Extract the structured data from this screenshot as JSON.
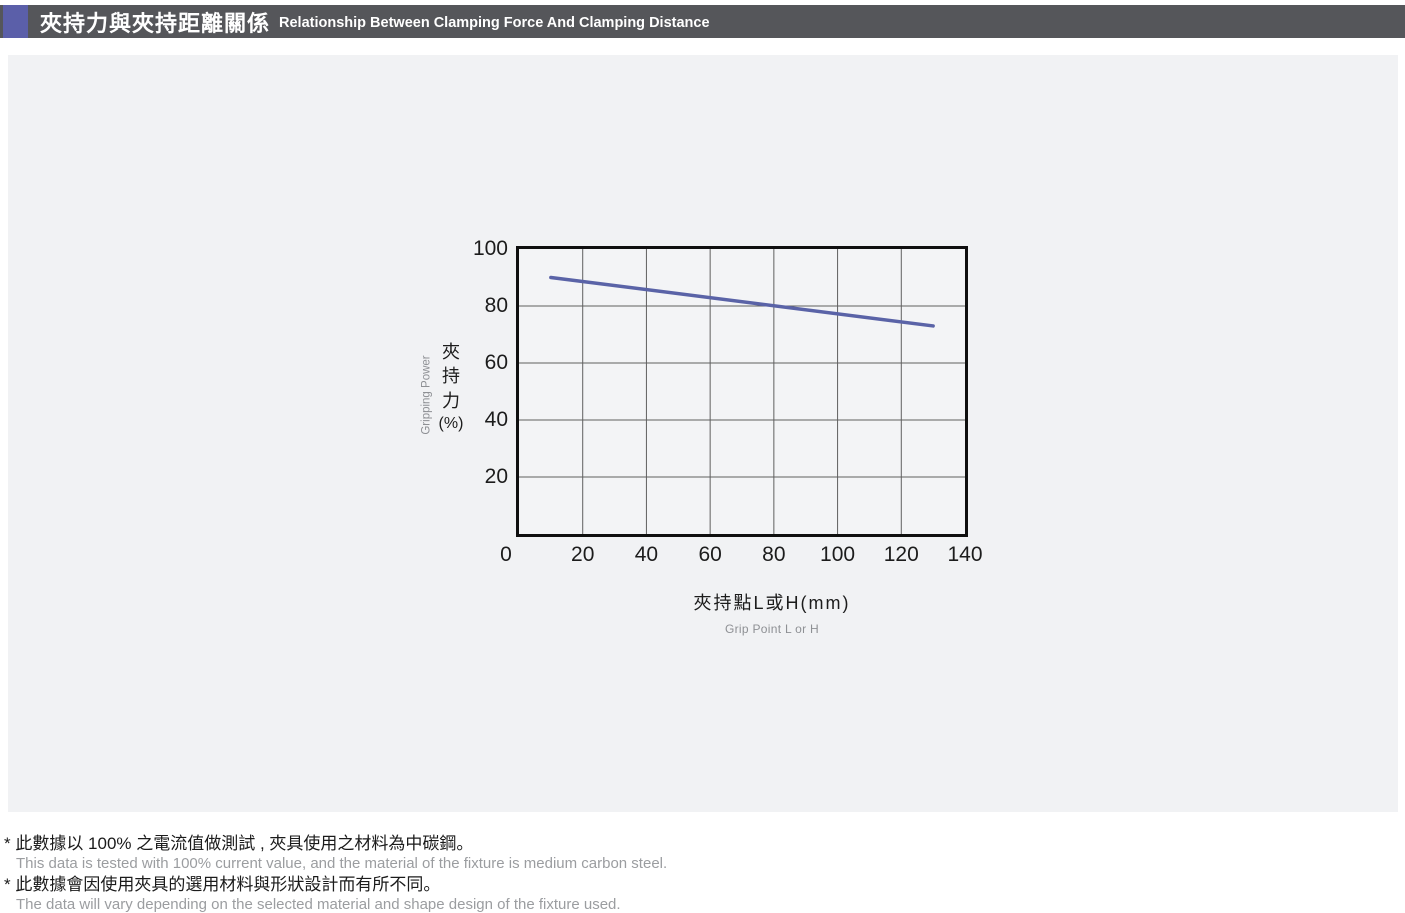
{
  "header": {
    "title_zh": "夾持力與夾持距離關係",
    "title_en": "Relationship Between Clamping Force And Clamping Distance",
    "bar_color": "#55565a",
    "accent_color": "#5b5fa9"
  },
  "chart_data": {
    "type": "line",
    "x_axis": {
      "label_zh": "夾持點L或H(mm)",
      "label_en": "Grip Point L or H",
      "ticks": [
        0,
        20,
        40,
        60,
        80,
        100,
        120,
        140
      ],
      "range": [
        0,
        140
      ]
    },
    "y_axis": {
      "label_zh": "夾持力",
      "label_unit": "(%)",
      "label_en": "Gripping Power",
      "ticks": [
        100,
        80,
        60,
        40,
        20
      ],
      "range": [
        0,
        100
      ]
    },
    "grid": true,
    "legend": "none",
    "series": [
      {
        "name": "gripping-power-vs-grip-point",
        "color": "#5a63a7",
        "points": [
          [
            10,
            90
          ],
          [
            130,
            73
          ]
        ]
      }
    ]
  },
  "notes": [
    {
      "zh": "* 此數據以 100% 之電流值做測試 , 夾具使用之材料為中碳鋼。",
      "en": "This data is tested with 100% current value, and the material of the fixture is medium carbon steel."
    },
    {
      "zh": "* 此數據會因使用夾具的選用材料與形狀設計而有所不同。",
      "en": "The data will vary depending on the selected material and shape design of the fixture used."
    }
  ]
}
